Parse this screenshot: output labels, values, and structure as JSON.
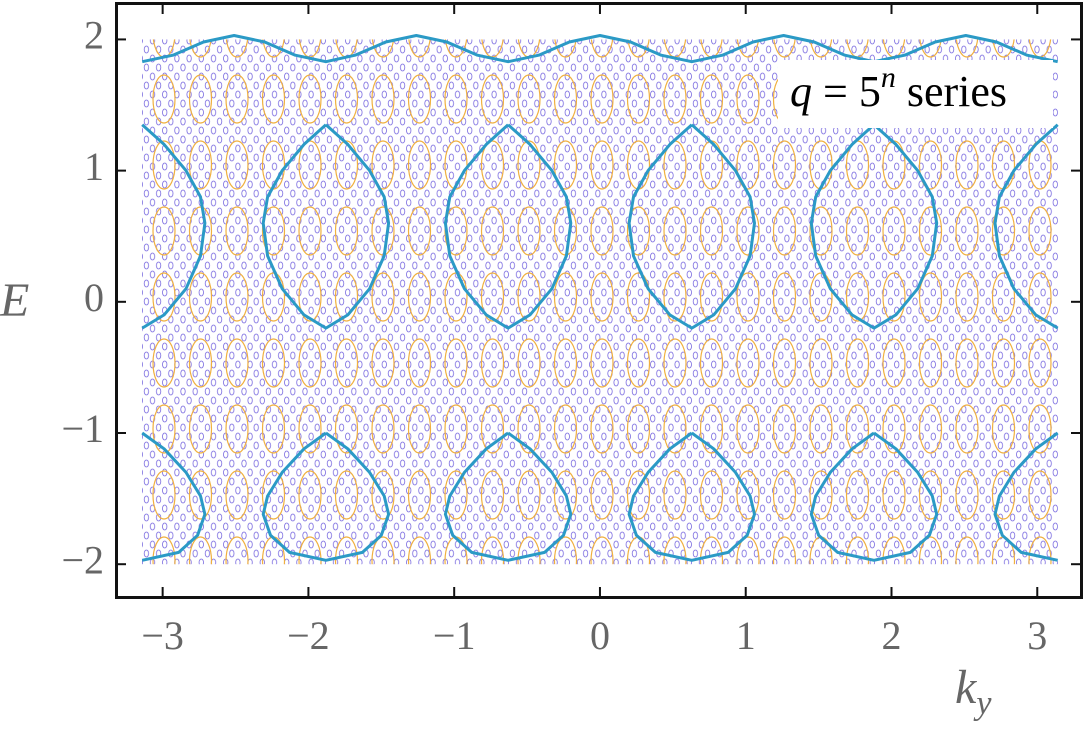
{
  "chart_data": {
    "type": "line",
    "xlabel": [
      "k",
      "y"
    ],
    "ylabel": "E",
    "annotation": [
      "q",
      " = 5",
      "n",
      " series"
    ],
    "xlim": [
      -3.32,
      3.3
    ],
    "ylim": [
      -2.25,
      2.27
    ],
    "xticks": [
      {
        "value": -3,
        "label": "−3"
      },
      {
        "value": -2,
        "label": "−2"
      },
      {
        "value": -1,
        "label": "−1"
      },
      0,
      1,
      2,
      3
    ],
    "yticks": [
      {
        "value": -2,
        "label": "−2"
      },
      {
        "value": -1,
        "label": "−1"
      },
      0,
      1,
      2
    ],
    "series": [
      {
        "color": "#2b9ac6",
        "x": [
          -3.14,
          -2.93,
          -2.72,
          -2.51,
          -2.3,
          -2.09,
          -1.88,
          -1.68,
          -1.47,
          -1.26,
          -1.05,
          -0.84,
          -0.63,
          -0.42,
          -0.21,
          0,
          0.21,
          0.42,
          0.63,
          0.84,
          1.05,
          1.26,
          1.47,
          1.68,
          1.88,
          2.09,
          2.3,
          2.51,
          2.72,
          2.93,
          3.14
        ],
        "values": [
          1.83,
          1.88,
          1.98,
          2.03,
          1.98,
          1.88,
          1.83,
          1.88,
          1.98,
          2.03,
          1.98,
          1.88,
          1.83,
          1.88,
          1.98,
          2.03,
          1.98,
          1.88,
          1.83,
          1.88,
          1.98,
          2.03,
          1.98,
          1.88,
          1.83,
          1.88,
          1.98,
          2.03,
          1.98,
          1.88,
          1.83
        ]
      },
      {
        "color": "#2b9ac6",
        "x": [
          -3.14,
          -2.99,
          -2.84,
          -2.74,
          -2.71,
          -2.74,
          -2.84,
          -2.99,
          -3.14,
          null,
          -1.88,
          -1.73,
          -1.58,
          -1.48,
          -1.45,
          -1.48,
          -1.58,
          -1.73,
          -1.88,
          -2.03,
          -2.18,
          -2.28,
          -2.31,
          -2.28,
          -2.18,
          -2.03,
          -1.88,
          null,
          -0.63,
          -0.48,
          -0.33,
          -0.23,
          -0.2,
          -0.23,
          -0.33,
          -0.48,
          -0.63,
          -0.78,
          -0.93,
          -1.03,
          -1.06,
          -1.03,
          -0.93,
          -0.78,
          -0.63,
          null,
          0.63,
          0.78,
          0.93,
          1.03,
          1.06,
          1.03,
          0.93,
          0.78,
          0.63,
          0.48,
          0.33,
          0.23,
          0.2,
          0.23,
          0.33,
          0.48,
          0.63,
          null,
          1.88,
          2.03,
          2.18,
          2.28,
          2.31,
          2.28,
          2.18,
          2.03,
          1.88,
          1.73,
          1.58,
          1.48,
          1.45,
          1.48,
          1.58,
          1.73,
          1.88,
          null,
          3.14,
          2.99,
          2.84,
          2.74,
          2.71,
          2.74,
          2.84,
          2.99,
          3.14
        ],
        "values": [
          1.35,
          1.2,
          1.0,
          0.8,
          0.6,
          0.35,
          0.1,
          -0.1,
          -0.2,
          null,
          1.35,
          1.2,
          1.0,
          0.8,
          0.6,
          0.35,
          0.1,
          -0.1,
          -0.2,
          -0.1,
          0.1,
          0.35,
          0.6,
          0.8,
          1.0,
          1.2,
          1.35,
          null,
          1.35,
          1.2,
          1.0,
          0.8,
          0.6,
          0.35,
          0.1,
          -0.1,
          -0.2,
          -0.1,
          0.1,
          0.35,
          0.6,
          0.8,
          1.0,
          1.2,
          1.35,
          null,
          1.35,
          1.2,
          1.0,
          0.8,
          0.6,
          0.35,
          0.1,
          -0.1,
          -0.2,
          -0.1,
          0.1,
          0.35,
          0.6,
          0.8,
          1.0,
          1.2,
          1.35,
          null,
          1.35,
          1.2,
          1.0,
          0.8,
          0.6,
          0.35,
          0.1,
          -0.1,
          -0.2,
          -0.1,
          0.1,
          0.35,
          0.6,
          0.8,
          1.0,
          1.2,
          1.35,
          null,
          -0.2,
          -0.1,
          0.1,
          0.35,
          0.6,
          0.8,
          1.0,
          1.2,
          1.35
        ]
      },
      {
        "color": "#2b9ac6",
        "x": [
          -3.14,
          -2.99,
          -2.84,
          -2.74,
          -2.71,
          -2.76,
          -2.89,
          -3.14,
          null,
          -1.88,
          -1.73,
          -1.58,
          -1.48,
          -1.45,
          -1.5,
          -1.63,
          -1.88,
          -2.13,
          -2.26,
          -2.31,
          -2.28,
          -2.18,
          -2.03,
          -1.88,
          null,
          -0.63,
          -0.48,
          -0.33,
          -0.23,
          -0.2,
          -0.25,
          -0.38,
          -0.63,
          -0.88,
          -1.01,
          -1.06,
          -1.03,
          -0.93,
          -0.78,
          -0.63,
          null,
          0.63,
          0.78,
          0.93,
          1.03,
          1.06,
          1.01,
          0.88,
          0.63,
          0.38,
          0.25,
          0.2,
          0.23,
          0.33,
          0.48,
          0.63,
          null,
          1.88,
          2.03,
          2.18,
          2.28,
          2.31,
          2.26,
          2.13,
          1.88,
          1.63,
          1.5,
          1.45,
          1.48,
          1.58,
          1.73,
          1.88,
          null,
          3.14,
          2.89,
          2.76,
          2.71,
          2.74,
          2.84,
          2.99,
          3.14
        ],
        "values": [
          -1.0,
          -1.12,
          -1.3,
          -1.48,
          -1.62,
          -1.78,
          -1.91,
          -1.97,
          null,
          -1.0,
          -1.12,
          -1.3,
          -1.48,
          -1.62,
          -1.78,
          -1.91,
          -1.97,
          -1.91,
          -1.78,
          -1.62,
          -1.48,
          -1.3,
          -1.12,
          -1.0,
          null,
          -1.0,
          -1.12,
          -1.3,
          -1.48,
          -1.62,
          -1.78,
          -1.91,
          -1.97,
          -1.91,
          -1.78,
          -1.62,
          -1.48,
          -1.3,
          -1.12,
          -1.0,
          null,
          -1.0,
          -1.12,
          -1.3,
          -1.48,
          -1.62,
          -1.78,
          -1.91,
          -1.97,
          -1.91,
          -1.78,
          -1.62,
          -1.48,
          -1.3,
          -1.12,
          -1.0,
          null,
          -1.0,
          -1.12,
          -1.3,
          -1.48,
          -1.62,
          -1.78,
          -1.91,
          -1.97,
          -1.91,
          -1.78,
          -1.62,
          -1.48,
          -1.3,
          -1.12,
          -1.0,
          null,
          -1.97,
          -1.91,
          -1.78,
          -1.62,
          -1.48,
          -1.3,
          -1.12,
          -1.0
        ]
      }
    ]
  }
}
